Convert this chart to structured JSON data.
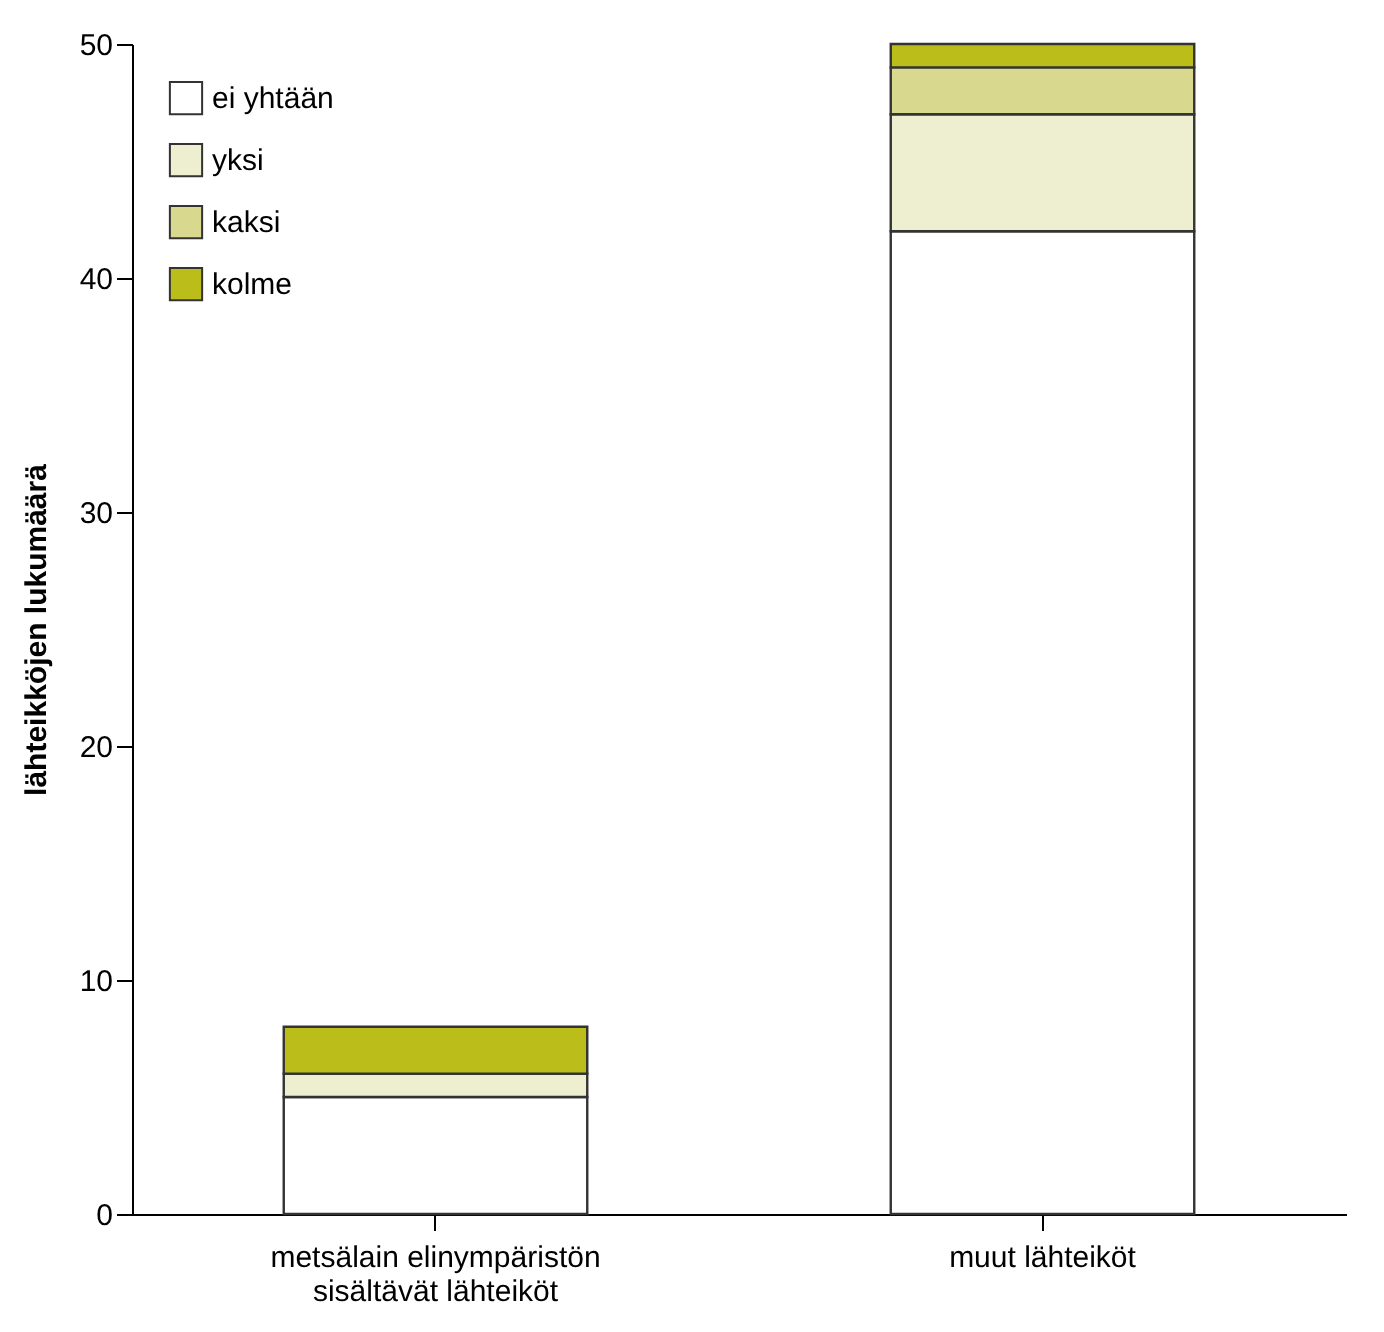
{
  "chart_data": {
    "type": "bar",
    "stacked": true,
    "categories": [
      "metsälain elinympäristön sisältävät lähteiköt",
      "muut lähteiköt"
    ],
    "ylabel": "lähteikköjen lukumäärä",
    "series": [
      {
        "name": "ei yhtään",
        "color": "#ffffff",
        "values": [
          5,
          42
        ]
      },
      {
        "name": "yksi",
        "color": "#eeefd1",
        "values": [
          1,
          5
        ]
      },
      {
        "name": "kaksi",
        "color": "#d8d98f",
        "values": [
          0,
          2
        ]
      },
      {
        "name": "kolme",
        "color": "#bbbd1a",
        "values": [
          2,
          1
        ]
      }
    ],
    "ylim": [
      0,
      50
    ],
    "yticks": [
      0,
      10,
      20,
      30,
      40,
      50
    ],
    "grid": false,
    "legend": "top left"
  }
}
